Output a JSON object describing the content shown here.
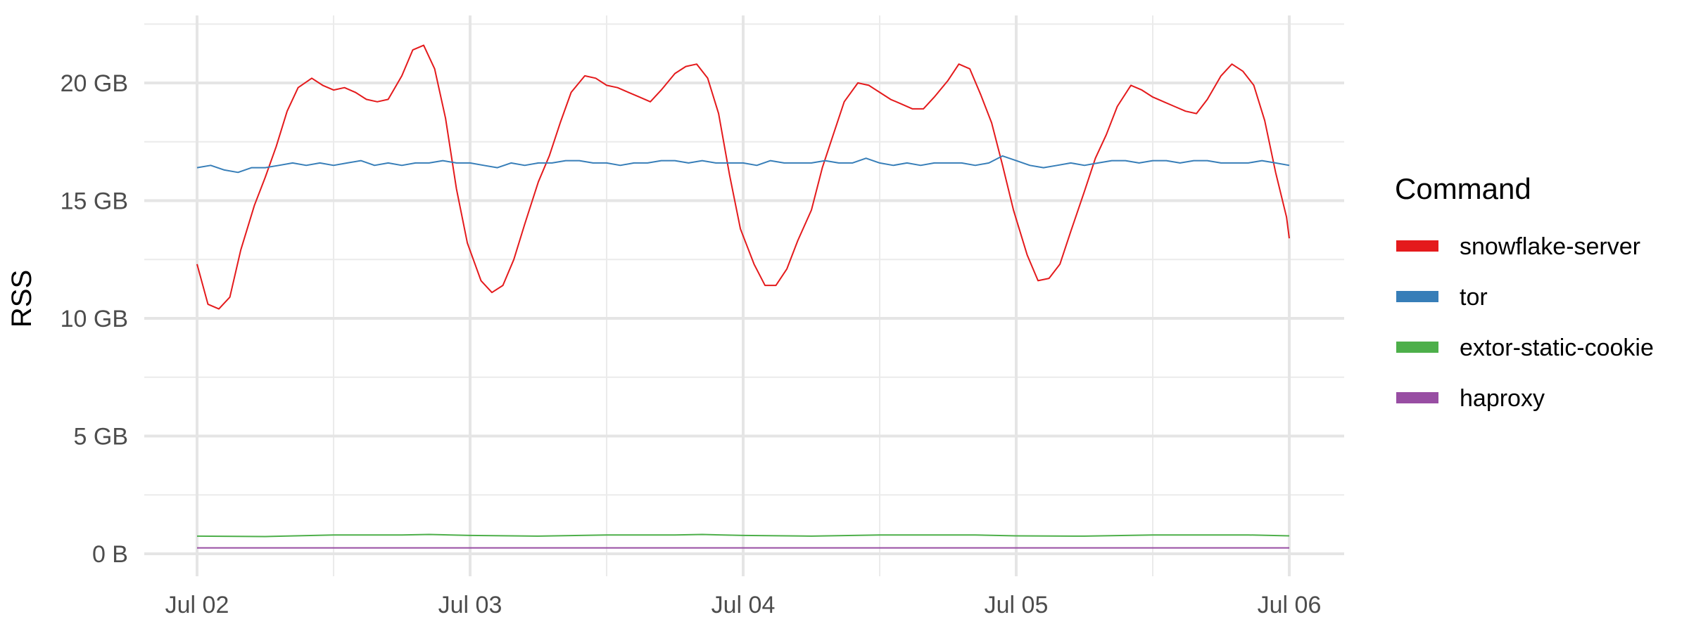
{
  "chart_data": {
    "type": "line",
    "title": "",
    "xlabel": "",
    "ylabel": "RSS",
    "x_ticks": [
      "Jul 02",
      "Jul 03",
      "Jul 04",
      "Jul 05",
      "Jul 06"
    ],
    "y_ticks": [
      "0 B",
      "5 GB",
      "10 GB",
      "15 GB",
      "20 GB"
    ],
    "y_tick_values": [
      0,
      5,
      10,
      15,
      20
    ],
    "x_range_days": [
      -0.2,
      4.2
    ],
    "ylim": [
      -0.3,
      23.0
    ],
    "grid": true,
    "legend": {
      "title": "Command",
      "position": "right"
    },
    "series": [
      {
        "name": "snowflake-server",
        "color": "#E41A1C",
        "points": [
          [
            0.0,
            12.3
          ],
          [
            0.04,
            10.6
          ],
          [
            0.08,
            10.4
          ],
          [
            0.12,
            10.9
          ],
          [
            0.16,
            12.9
          ],
          [
            0.21,
            14.8
          ],
          [
            0.25,
            16.0
          ],
          [
            0.29,
            17.3
          ],
          [
            0.33,
            18.8
          ],
          [
            0.37,
            19.8
          ],
          [
            0.42,
            20.2
          ],
          [
            0.46,
            19.9
          ],
          [
            0.5,
            19.7
          ],
          [
            0.54,
            19.8
          ],
          [
            0.58,
            19.6
          ],
          [
            0.62,
            19.3
          ],
          [
            0.66,
            19.2
          ],
          [
            0.7,
            19.3
          ],
          [
            0.75,
            20.3
          ],
          [
            0.79,
            21.4
          ],
          [
            0.83,
            21.6
          ],
          [
            0.87,
            20.6
          ],
          [
            0.91,
            18.5
          ],
          [
            0.95,
            15.5
          ],
          [
            0.99,
            13.2
          ],
          [
            1.04,
            11.6
          ],
          [
            1.08,
            11.1
          ],
          [
            1.12,
            11.4
          ],
          [
            1.16,
            12.5
          ],
          [
            1.2,
            14.0
          ],
          [
            1.25,
            15.8
          ],
          [
            1.29,
            16.9
          ],
          [
            1.33,
            18.3
          ],
          [
            1.37,
            19.6
          ],
          [
            1.42,
            20.3
          ],
          [
            1.46,
            20.2
          ],
          [
            1.5,
            19.9
          ],
          [
            1.54,
            19.8
          ],
          [
            1.58,
            19.6
          ],
          [
            1.62,
            19.4
          ],
          [
            1.66,
            19.2
          ],
          [
            1.7,
            19.7
          ],
          [
            1.75,
            20.4
          ],
          [
            1.79,
            20.7
          ],
          [
            1.83,
            20.8
          ],
          [
            1.87,
            20.2
          ],
          [
            1.91,
            18.7
          ],
          [
            1.95,
            16.1
          ],
          [
            1.99,
            13.8
          ],
          [
            2.04,
            12.3
          ],
          [
            2.08,
            11.4
          ],
          [
            2.12,
            11.4
          ],
          [
            2.16,
            12.1
          ],
          [
            2.2,
            13.3
          ],
          [
            2.25,
            14.6
          ],
          [
            2.29,
            16.4
          ],
          [
            2.33,
            17.8
          ],
          [
            2.37,
            19.2
          ],
          [
            2.42,
            20.0
          ],
          [
            2.46,
            19.9
          ],
          [
            2.5,
            19.6
          ],
          [
            2.54,
            19.3
          ],
          [
            2.58,
            19.1
          ],
          [
            2.62,
            18.9
          ],
          [
            2.66,
            18.9
          ],
          [
            2.7,
            19.4
          ],
          [
            2.75,
            20.1
          ],
          [
            2.79,
            20.8
          ],
          [
            2.83,
            20.6
          ],
          [
            2.87,
            19.5
          ],
          [
            2.91,
            18.3
          ],
          [
            2.95,
            16.5
          ],
          [
            2.99,
            14.6
          ],
          [
            3.04,
            12.7
          ],
          [
            3.08,
            11.6
          ],
          [
            3.12,
            11.7
          ],
          [
            3.16,
            12.3
          ],
          [
            3.2,
            13.7
          ],
          [
            3.25,
            15.4
          ],
          [
            3.29,
            16.8
          ],
          [
            3.33,
            17.8
          ],
          [
            3.37,
            19.0
          ],
          [
            3.42,
            19.9
          ],
          [
            3.46,
            19.7
          ],
          [
            3.5,
            19.4
          ],
          [
            3.54,
            19.2
          ],
          [
            3.58,
            19.0
          ],
          [
            3.62,
            18.8
          ],
          [
            3.66,
            18.7
          ],
          [
            3.7,
            19.3
          ],
          [
            3.75,
            20.3
          ],
          [
            3.79,
            20.8
          ],
          [
            3.83,
            20.5
          ],
          [
            3.87,
            19.9
          ],
          [
            3.91,
            18.4
          ],
          [
            3.95,
            16.2
          ],
          [
            3.99,
            14.3
          ],
          [
            4.0,
            13.4
          ]
        ]
      },
      {
        "name": "tor",
        "color": "#377EB8",
        "points": [
          [
            0.0,
            16.4
          ],
          [
            0.05,
            16.5
          ],
          [
            0.1,
            16.3
          ],
          [
            0.15,
            16.2
          ],
          [
            0.2,
            16.4
          ],
          [
            0.25,
            16.4
          ],
          [
            0.3,
            16.5
          ],
          [
            0.35,
            16.6
          ],
          [
            0.4,
            16.5
          ],
          [
            0.45,
            16.6
          ],
          [
            0.5,
            16.5
          ],
          [
            0.55,
            16.6
          ],
          [
            0.6,
            16.7
          ],
          [
            0.65,
            16.5
          ],
          [
            0.7,
            16.6
          ],
          [
            0.75,
            16.5
          ],
          [
            0.8,
            16.6
          ],
          [
            0.85,
            16.6
          ],
          [
            0.9,
            16.7
          ],
          [
            0.95,
            16.6
          ],
          [
            1.0,
            16.6
          ],
          [
            1.05,
            16.5
          ],
          [
            1.1,
            16.4
          ],
          [
            1.15,
            16.6
          ],
          [
            1.2,
            16.5
          ],
          [
            1.25,
            16.6
          ],
          [
            1.3,
            16.6
          ],
          [
            1.35,
            16.7
          ],
          [
            1.4,
            16.7
          ],
          [
            1.45,
            16.6
          ],
          [
            1.5,
            16.6
          ],
          [
            1.55,
            16.5
          ],
          [
            1.6,
            16.6
          ],
          [
            1.65,
            16.6
          ],
          [
            1.7,
            16.7
          ],
          [
            1.75,
            16.7
          ],
          [
            1.8,
            16.6
          ],
          [
            1.85,
            16.7
          ],
          [
            1.9,
            16.6
          ],
          [
            1.95,
            16.6
          ],
          [
            2.0,
            16.6
          ],
          [
            2.05,
            16.5
          ],
          [
            2.1,
            16.7
          ],
          [
            2.15,
            16.6
          ],
          [
            2.2,
            16.6
          ],
          [
            2.25,
            16.6
          ],
          [
            2.3,
            16.7
          ],
          [
            2.35,
            16.6
          ],
          [
            2.4,
            16.6
          ],
          [
            2.45,
            16.8
          ],
          [
            2.5,
            16.6
          ],
          [
            2.55,
            16.5
          ],
          [
            2.6,
            16.6
          ],
          [
            2.65,
            16.5
          ],
          [
            2.7,
            16.6
          ],
          [
            2.75,
            16.6
          ],
          [
            2.8,
            16.6
          ],
          [
            2.85,
            16.5
          ],
          [
            2.9,
            16.6
          ],
          [
            2.95,
            16.9
          ],
          [
            3.0,
            16.7
          ],
          [
            3.05,
            16.5
          ],
          [
            3.1,
            16.4
          ],
          [
            3.15,
            16.5
          ],
          [
            3.2,
            16.6
          ],
          [
            3.25,
            16.5
          ],
          [
            3.3,
            16.6
          ],
          [
            3.35,
            16.7
          ],
          [
            3.4,
            16.7
          ],
          [
            3.45,
            16.6
          ],
          [
            3.5,
            16.7
          ],
          [
            3.55,
            16.7
          ],
          [
            3.6,
            16.6
          ],
          [
            3.65,
            16.7
          ],
          [
            3.7,
            16.7
          ],
          [
            3.75,
            16.6
          ],
          [
            3.8,
            16.6
          ],
          [
            3.85,
            16.6
          ],
          [
            3.9,
            16.7
          ],
          [
            3.95,
            16.6
          ],
          [
            4.0,
            16.5
          ]
        ]
      },
      {
        "name": "extor-static-cookie",
        "color": "#4DAF4A",
        "points": [
          [
            0.0,
            0.75
          ],
          [
            0.25,
            0.73
          ],
          [
            0.5,
            0.8
          ],
          [
            0.75,
            0.8
          ],
          [
            0.85,
            0.82
          ],
          [
            1.0,
            0.78
          ],
          [
            1.25,
            0.75
          ],
          [
            1.5,
            0.8
          ],
          [
            1.75,
            0.8
          ],
          [
            1.85,
            0.82
          ],
          [
            2.0,
            0.78
          ],
          [
            2.25,
            0.75
          ],
          [
            2.5,
            0.8
          ],
          [
            2.75,
            0.8
          ],
          [
            2.85,
            0.8
          ],
          [
            3.0,
            0.76
          ],
          [
            3.25,
            0.75
          ],
          [
            3.5,
            0.8
          ],
          [
            3.75,
            0.8
          ],
          [
            3.85,
            0.8
          ],
          [
            4.0,
            0.76
          ]
        ]
      },
      {
        "name": "haproxy",
        "color": "#984EA3",
        "points": [
          [
            0.0,
            0.25
          ],
          [
            4.0,
            0.25
          ]
        ]
      }
    ]
  }
}
